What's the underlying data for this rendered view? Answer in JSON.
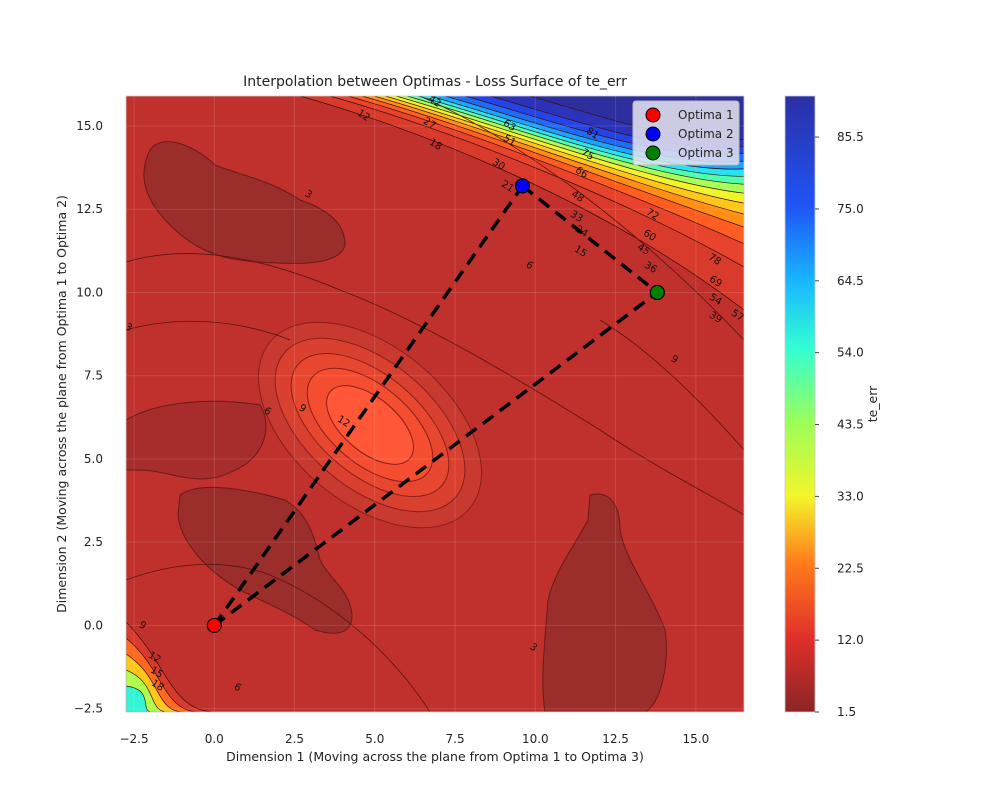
{
  "chart_data": {
    "type": "contour",
    "title": "Interpolation between Optimas - Loss Surface of te_err",
    "xlabel": "Dimension 1 (Moving across the plane from Optima 1 to Optima 3)",
    "ylabel": "Dimension 2 (Moving across the plane from Optima 1 to Optima 2)",
    "xlim": [
      -2.75,
      16.5
    ],
    "ylim": [
      -2.6,
      15.9
    ],
    "x_ticks": [
      "−2.5",
      "0.0",
      "2.5",
      "5.0",
      "7.5",
      "10.0",
      "12.5",
      "15.0"
    ],
    "x_tick_values": [
      -2.5,
      0,
      2.5,
      5,
      7.5,
      10,
      12.5,
      15
    ],
    "y_ticks": [
      "−2.5",
      "0.0",
      "2.5",
      "5.0",
      "7.5",
      "10.0",
      "12.5",
      "15.0"
    ],
    "y_tick_values": [
      -2.5,
      0,
      2.5,
      5,
      7.5,
      10,
      12.5,
      15
    ],
    "grid": true,
    "legend_position": "top-right",
    "colorbar": {
      "label": "te_err",
      "min": 1.5,
      "max": 91.5,
      "tick_labels": [
        "1.5",
        "12.0",
        "22.5",
        "33.0",
        "43.5",
        "54.0",
        "64.5",
        "75.0",
        "85.5"
      ],
      "tick_values": [
        1.5,
        12.0,
        22.5,
        33.0,
        43.5,
        54.0,
        64.5,
        75.0,
        85.5
      ]
    },
    "optima": [
      {
        "name": "Optima 1",
        "x": 0.0,
        "y": 0.0,
        "color": "#ff0000"
      },
      {
        "name": "Optima 2",
        "x": 9.6,
        "y": 13.2,
        "color": "#0000ff"
      },
      {
        "name": "Optima 3",
        "x": 13.8,
        "y": 10.0,
        "color": "#008000"
      }
    ],
    "paths": [
      {
        "from": "Optima 1",
        "to": "Optima 2"
      },
      {
        "from": "Optima 1",
        "to": "Optima 3"
      },
      {
        "from": "Optima 2",
        "to": "Optima 3"
      }
    ],
    "contour_labels": [
      "42",
      "12",
      "27",
      "18",
      "63",
      "51",
      "81",
      "75",
      "66",
      "30",
      "21",
      "3",
      "48",
      "33",
      "24",
      "72",
      "60",
      "45",
      "15",
      "36",
      "6",
      "78",
      "69",
      "54",
      "57",
      "39",
      "9",
      "12",
      "6",
      "9",
      "3",
      "9",
      "12",
      "15",
      "18",
      "6",
      "3"
    ]
  }
}
